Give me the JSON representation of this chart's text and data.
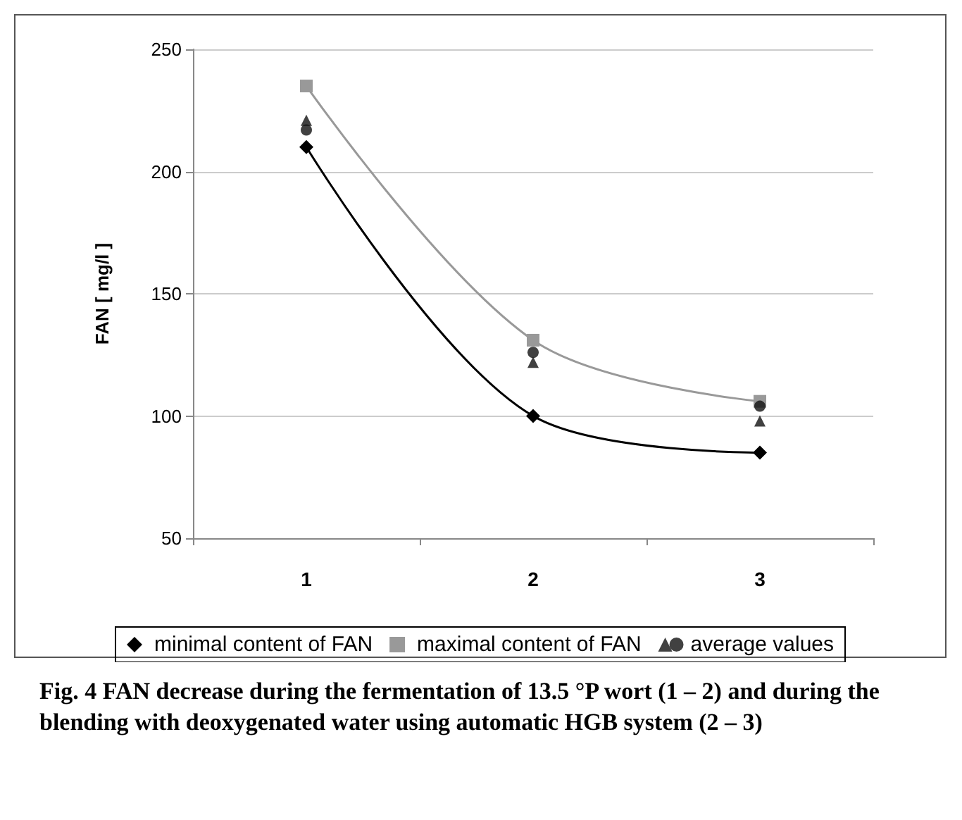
{
  "chart_data": {
    "type": "line",
    "xlabel": null,
    "ylabel": "FAN [ mg/l ]",
    "categories": [
      "1",
      "2",
      "3"
    ],
    "series": [
      {
        "name": "minimal content of FAN",
        "type": "line",
        "color": "#000000",
        "marker": "diamond",
        "values": [
          210,
          100,
          85
        ]
      },
      {
        "name": "maximal content of FAN",
        "type": "line",
        "color": "#999999",
        "marker": "square",
        "values": [
          235,
          131,
          106
        ]
      },
      {
        "name": "average values",
        "type": "scatter",
        "color": "#111111",
        "marker": "triangle",
        "values": [
          221,
          122,
          98
        ]
      },
      {
        "type": "scatter",
        "color": "#111111",
        "marker": "circle",
        "values": [
          217,
          126,
          104
        ]
      }
    ],
    "ylim": [
      50,
      250
    ],
    "yticks": [
      50,
      100,
      150,
      200,
      250
    ],
    "grid": "y",
    "legend": "bottom",
    "annotations": [
      "Fig. 4  FAN decrease during the fermentation of 13.5 °P wort (1 – 2) and during the blending with deoxygenated water using automatic HGB system (2 – 3)"
    ]
  }
}
